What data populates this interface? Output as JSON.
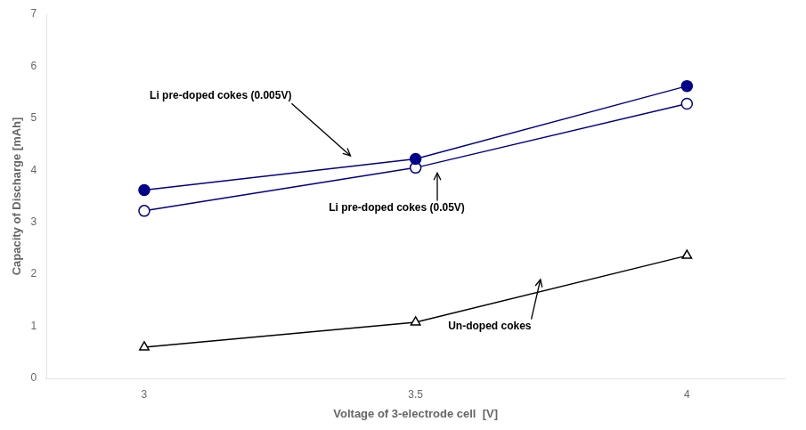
{
  "chart_data": {
    "type": "line",
    "x": [
      3.0,
      3.5,
      4.0
    ],
    "series": [
      {
        "color": "#00008B",
        "marker": "circle",
        "values": [
          3.62,
          4.22,
          5.62
        ]
      },
      {
        "color": "#00008B",
        "marker": "circle-open",
        "values": [
          3.22,
          4.05,
          5.28
        ]
      },
      {
        "color": "#000000",
        "marker": "triangle-open",
        "values": [
          0.6,
          1.08,
          2.36
        ]
      }
    ],
    "xlabel": "Voltage of 3-electrode cell  [V]",
    "ylabel": "Capacity of Discharge [mAh]",
    "xlim": [
      2.82,
      4.18
    ],
    "ylim": [
      0,
      7
    ],
    "xticks": [
      3.0,
      3.5,
      4.0
    ],
    "yticks": [
      0,
      1,
      2,
      3,
      4,
      5,
      6,
      7
    ],
    "grid": false,
    "annotations": [
      {
        "text": "Li pre-doped cokes (0.005V)",
        "xy": [
          3.38,
          4.28
        ],
        "xytext": [
          3.01,
          5.32
        ]
      },
      {
        "text": "Li pre-doped cokes (0.05V)",
        "xy": [
          3.54,
          3.95
        ],
        "xytext": [
          3.34,
          3.38
        ]
      },
      {
        "text": "Un-doped cokes",
        "xy": [
          3.73,
          1.9
        ],
        "xytext": [
          3.56,
          1.1
        ]
      }
    ]
  }
}
